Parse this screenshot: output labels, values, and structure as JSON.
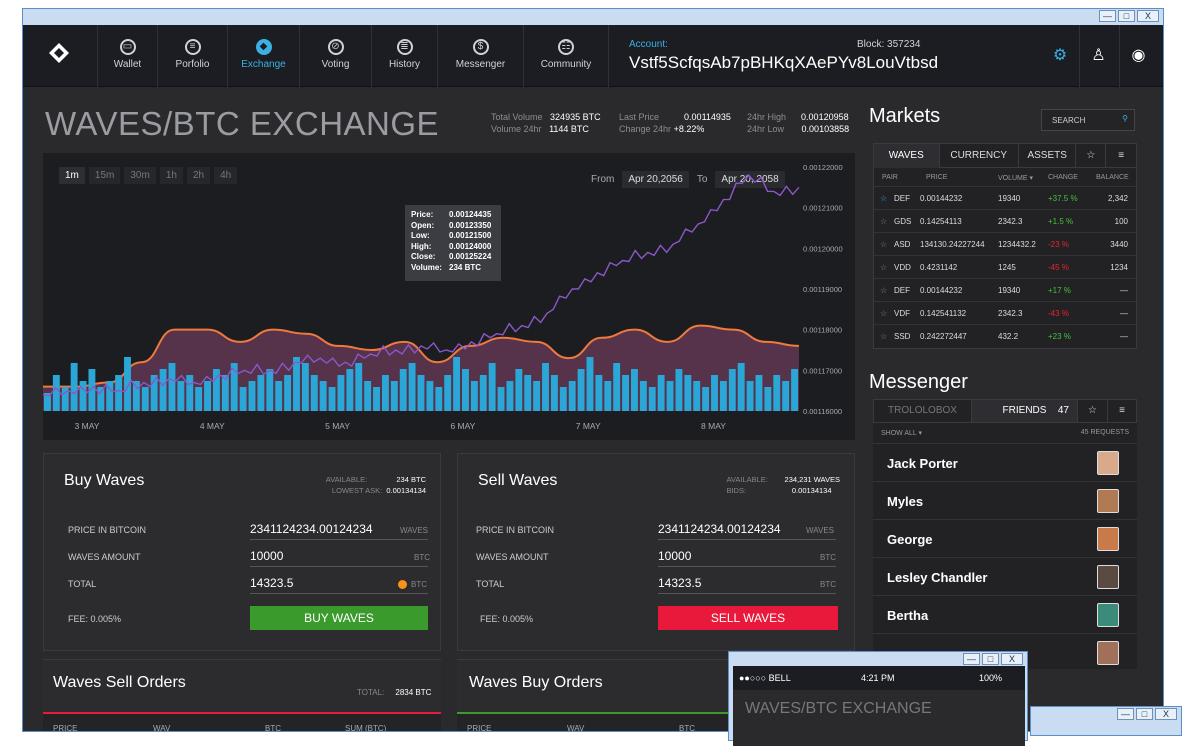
{
  "window": {
    "min": "—",
    "max": "□",
    "close": "X"
  },
  "nav": {
    "items": [
      {
        "label": "Wallet",
        "icon": "wallet-icon",
        "glyph": "▭"
      },
      {
        "label": "Porfolio",
        "icon": "portfolio-icon",
        "glyph": "≡"
      },
      {
        "label": "Exchange",
        "icon": "exchange-icon",
        "glyph": "◆"
      },
      {
        "label": "Voting",
        "icon": "voting-icon",
        "glyph": "⊘"
      },
      {
        "label": "History",
        "icon": "history-icon",
        "glyph": "≣"
      },
      {
        "label": "Messenger",
        "icon": "messenger-icon",
        "glyph": "$"
      },
      {
        "label": "Community",
        "icon": "community-icon",
        "glyph": "☷"
      }
    ],
    "account_label": "Account:",
    "account_value": "Vstf5ScfqsAb7pBHKqXAePYv8LouVtbsd",
    "block_label": "Block: 357234",
    "settings_glyph": "⚙",
    "user_glyph": "♙",
    "power_glyph": "◉"
  },
  "page": {
    "title": "WAVES/BTC EXCHANGE",
    "stats": {
      "total_volume_label": "Total Volume",
      "total_volume": "324935 BTC",
      "volume24_label": "Volume 24hr",
      "volume24": "1144 BTC",
      "last_price_label": "Last Price",
      "last_price": "0.00114935",
      "change24_label": "Change 24hr",
      "change24": "+8.22%",
      "high24_label": "24hr High",
      "high24": "0.00120958",
      "low24_label": "24hr Low",
      "low24": "0.00103858"
    }
  },
  "chart_controls": {
    "timeframes": [
      "1m",
      "15m",
      "30m",
      "1h",
      "2h",
      "4h"
    ],
    "from_label": "From",
    "from_value": "Apr 20,2056",
    "to_label": "To",
    "to_value": "Apr 20, 2058"
  },
  "tooltip": {
    "price_label": "Price:",
    "price": "0.00124435",
    "open_label": "Open:",
    "open": "0.00123350",
    "low_label": "Low:",
    "low": "0.00121500",
    "high_label": "High:",
    "high": "0.00124000",
    "close_label": "Close:",
    "close": "0.00125224",
    "volume_label": "Volume:",
    "volume": "234 BTC"
  },
  "chart_data": {
    "type": "line",
    "title": "WAVES/BTC EXCHANGE",
    "x_ticks": [
      "3 MAY",
      "4 MAY",
      "5 MAY",
      "6 MAY",
      "7 MAY",
      "8 MAY"
    ],
    "y_ticks": [
      "0.00122000",
      "0.00121000",
      "0.00120000",
      "0.00119000",
      "0.00118000",
      "0.00117000",
      "0.00116000"
    ],
    "ylim": [
      0.00116,
      0.00122
    ],
    "series": [
      {
        "name": "price",
        "color": "#8a58c8",
        "values": [
          0.001164,
          0.001165,
          0.001166,
          0.001165,
          0.001167,
          0.001168,
          0.001167,
          0.001169,
          0.00117,
          0.00117,
          0.001172,
          0.001173,
          0.001172,
          0.001174,
          0.001175,
          0.001176,
          0.001175,
          0.001177,
          0.001179,
          0.001181,
          0.001184,
          0.00119,
          0.001194,
          0.001197,
          0.001199,
          0.001201,
          0.001206,
          0.001212,
          0.001218,
          0.001214,
          0.001215
        ]
      },
      {
        "name": "average",
        "color": "#f07a3c",
        "values": [
          0.001166,
          0.001166,
          0.001167,
          0.001172,
          0.00118,
          0.00118,
          0.001177,
          0.00118,
          0.001179,
          0.001176,
          0.001175,
          0.001177,
          0.001172,
          0.001176,
          0.001178,
          0.001177,
          0.001173,
          0.001178,
          0.00118,
          0.001177,
          0.001181,
          0.00118,
          0.001177,
          0.001176
        ]
      }
    ],
    "volume": [
      3,
      6,
      4,
      8,
      5,
      7,
      4,
      5,
      6,
      9,
      5,
      4,
      6,
      7,
      8,
      5,
      6,
      4,
      5,
      7,
      6,
      8,
      4,
      5,
      6,
      7,
      5,
      6,
      9,
      8,
      6,
      5,
      4,
      6,
      7,
      8,
      5,
      4,
      6,
      5,
      7,
      8,
      6,
      5,
      4,
      6,
      9,
      7,
      5,
      6,
      8,
      4,
      5,
      7,
      6,
      5,
      8,
      6,
      4,
      5,
      7,
      9,
      6,
      5,
      8,
      6,
      7,
      5,
      4,
      6,
      5,
      7,
      6,
      5,
      4,
      6,
      5,
      7,
      8,
      5,
      6,
      4,
      6,
      5,
      7
    ]
  },
  "buy": {
    "title": "Buy Waves",
    "available_label": "AVAILABLE:",
    "available": "234 BTC",
    "lowest_label": "LOWEST ASK:",
    "lowest": "0.00134134",
    "price_label": "PRICE IN BITCOIN",
    "price": "2341124234.00124234",
    "price_unit": "WAVES",
    "amount_label": "WAVES AMOUNT",
    "amount": "10000",
    "amount_unit": "BTC",
    "total_label": "TOTAL",
    "total": "14323.5",
    "total_unit": "BTC",
    "fee": "FEE:  0.005%",
    "button": "BUY WAVES"
  },
  "sell": {
    "title": "Sell Waves",
    "available_label": "AVAILABLE:",
    "available": "234,231 WAVES",
    "bids_label": "BIDS:",
    "bids": "0.00134134",
    "price_label": "PRICE IN BITCOIN",
    "price": "2341124234.00124234",
    "price_unit": "WAVES",
    "amount_label": "WAVES AMOUNT",
    "amount": "10000",
    "amount_unit": "BTC",
    "total_label": "TOTAL",
    "total": "14323.5",
    "total_unit": "BTC",
    "fee": "FEE:  0.005%",
    "button": "SELL WAVES"
  },
  "sell_orders": {
    "title": "Waves Sell Orders",
    "total_label": "TOTAL:",
    "total": "2834 BTC",
    "cols": [
      "PRICE",
      "WAV",
      "BTC",
      "SUM (BTC)"
    ]
  },
  "buy_orders": {
    "title": "Waves Buy Orders",
    "cols": [
      "PRICE",
      "WAV",
      "BTC"
    ]
  },
  "markets": {
    "title": "Markets",
    "search": "SEARCH",
    "tabs": [
      "WAVES",
      "CURRENCY",
      "ASSETS"
    ],
    "star_glyph": "☆",
    "menu_glyph": "≡",
    "headers": [
      "PAIR",
      "PRICE",
      "VOLUME ▾",
      "CHANGE",
      "BALANCE"
    ],
    "rows": [
      {
        "pair": "DEF",
        "price": "0.00144232",
        "volume": "19340",
        "change": "+37.5 %",
        "balance": "2,342",
        "dir": "pos",
        "fav": true
      },
      {
        "pair": "GDS",
        "price": "0.14254113",
        "volume": "2342.3",
        "change": "+1.5 %",
        "balance": "100",
        "dir": "pos",
        "fav": false
      },
      {
        "pair": "ASD",
        "price": "134130.24227244",
        "volume": "1234432.2",
        "change": "-23 %",
        "balance": "3440",
        "dir": "neg",
        "fav": false
      },
      {
        "pair": "VDD",
        "price": "0.4231142",
        "volume": "1245",
        "change": "-45 %",
        "balance": "1234",
        "dir": "neg",
        "fav": false
      },
      {
        "pair": "DEF",
        "price": "0.00144232",
        "volume": "19340",
        "change": "+17 %",
        "balance": "—",
        "dir": "pos",
        "fav": false
      },
      {
        "pair": "VDF",
        "price": "0.142541132",
        "volume": "2342.3",
        "change": "-43 %",
        "balance": "—",
        "dir": "neg",
        "fav": false
      },
      {
        "pair": "SSD",
        "price": "0.242272447",
        "volume": "432.2",
        "change": "+23 %",
        "balance": "—",
        "dir": "pos",
        "fav": false
      }
    ]
  },
  "messenger": {
    "title": "Messenger",
    "tabs": [
      "TROLOLOBOX",
      "FRIENDS"
    ],
    "friends_count": "47",
    "show_all": "SHOW ALL ▾",
    "requests": "45 REQUESTS",
    "friends": [
      "Jack Porter",
      "Myles",
      "George",
      "Lesley Chandler",
      "Bertha"
    ]
  },
  "mobile": {
    "carrier": "●●○○○ BELL",
    "time": "4:21 PM",
    "battery": "100%",
    "title": "WAVES/BTC EXCHANGE"
  },
  "colors": {
    "accent": "#3ab0e4",
    "buy": "#3b9a2c",
    "sell": "#e8193a",
    "price_line": "#8a58c8",
    "avg_line": "#f07a3c",
    "volume": "#2aa7d6"
  }
}
